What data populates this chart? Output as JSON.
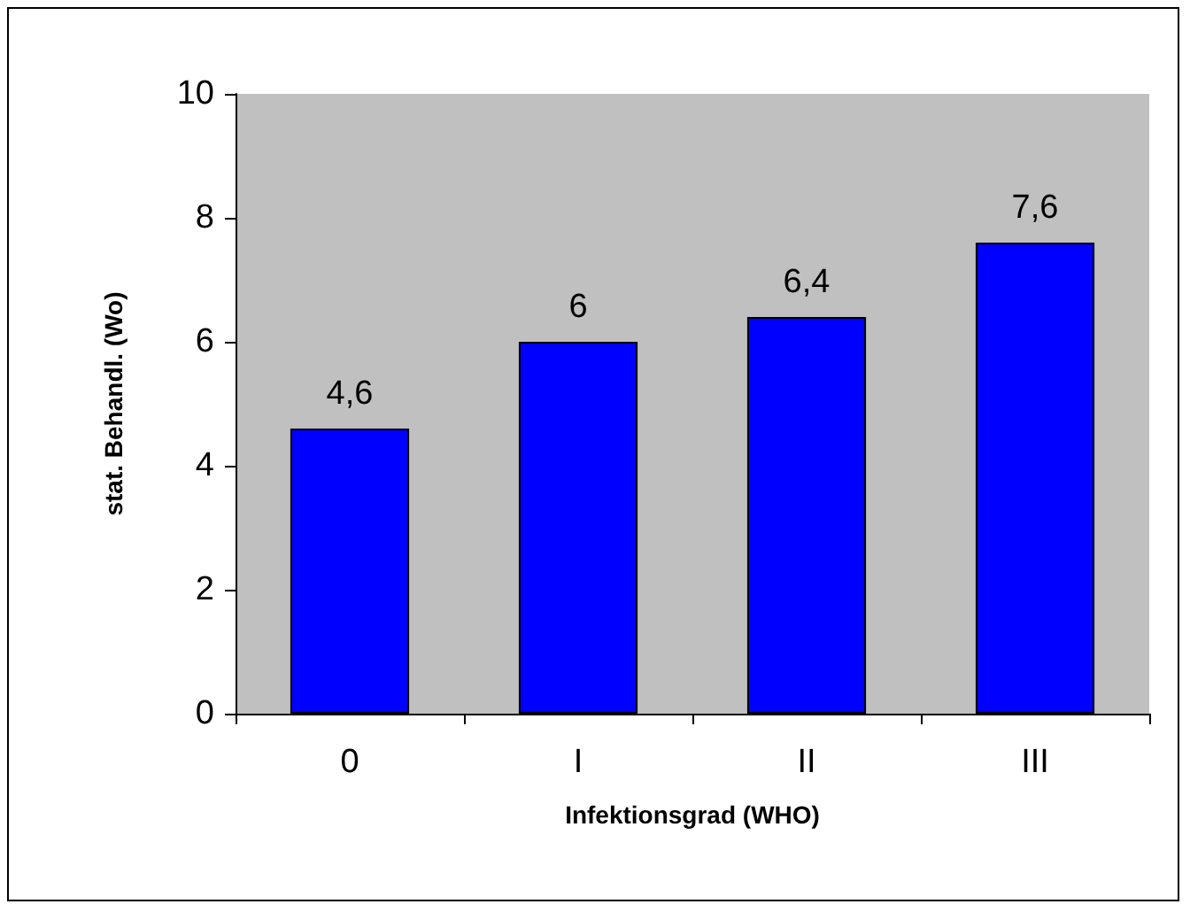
{
  "chart_data": {
    "type": "bar",
    "xlabel": "Infektionsgrad (WHO)",
    "ylabel": "stat. Behandl. (Wo)",
    "categories": [
      "0",
      "I",
      "II",
      "III"
    ],
    "values": [
      4.6,
      6,
      6.4,
      7.6
    ],
    "value_labels": [
      "4,6",
      "6",
      "6,4",
      "7,6"
    ],
    "color": "#0000ff",
    "ylim": [
      0,
      10
    ],
    "yticks": [
      0,
      2,
      4,
      6,
      8,
      10
    ],
    "grid": false
  }
}
